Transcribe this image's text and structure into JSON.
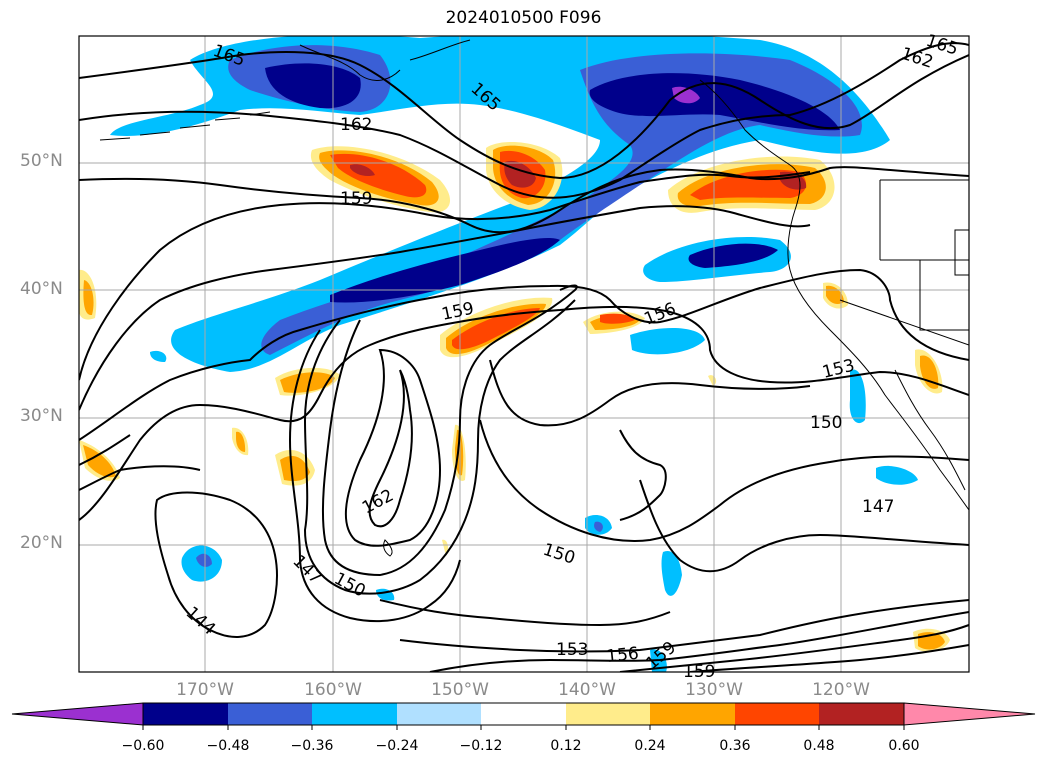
{
  "title": "2024010500 F096",
  "lat_labels": [
    "50°N",
    "40°N",
    "30°N",
    "20°N"
  ],
  "lon_labels": [
    "170°W",
    "160°W",
    "150°W",
    "140°W",
    "130°W",
    "120°W"
  ],
  "contour_labels": [
    "165",
    "165",
    "162",
    "162",
    "165",
    "159",
    "159",
    "156",
    "153",
    "150",
    "147",
    "162",
    "150",
    "147",
    "150",
    "144",
    "153",
    "156",
    "159",
    "159"
  ],
  "colorbar": {
    "ticks": [
      "−0.60",
      "−0.48",
      "−0.36",
      "−0.24",
      "−0.12",
      "0.12",
      "0.24",
      "0.36",
      "0.48",
      "0.60"
    ],
    "colors": [
      "#9b30d0",
      "#00008b",
      "#3a5fd6",
      "#00bfff",
      "#b0e0ff",
      "#ffffff",
      "#ffec8b",
      "#ffa500",
      "#ff4500",
      "#b22222",
      "#ff88aa"
    ]
  }
}
